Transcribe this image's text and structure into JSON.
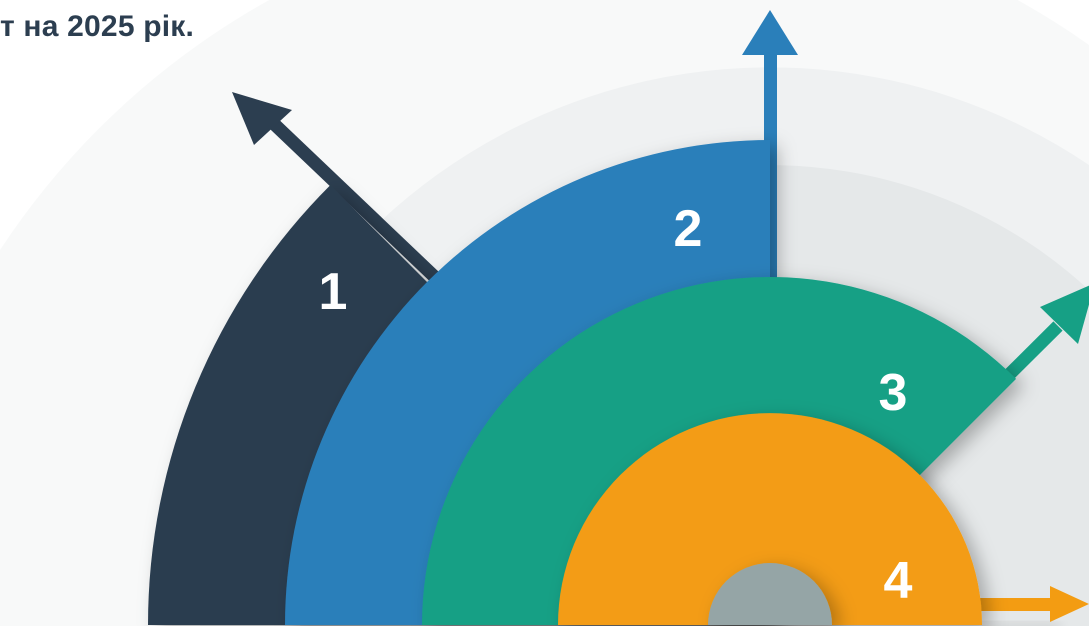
{
  "heading": "т на 2025 рік.",
  "steps": [
    {
      "label": "1",
      "color": "#2c3e50"
    },
    {
      "label": "2",
      "color": "#2a7fba"
    },
    {
      "label": "3",
      "color": "#16a085"
    },
    {
      "label": "4",
      "color": "#f39c12"
    }
  ],
  "hub_color": "#95a5a6",
  "background_colors": [
    "#f8f9f9",
    "#eff1f2",
    "#e5e8e9"
  ]
}
